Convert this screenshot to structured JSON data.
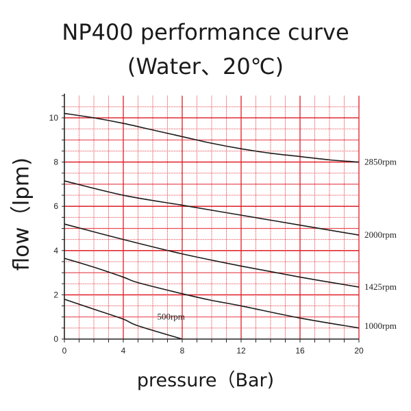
{
  "chart_data": {
    "type": "line",
    "title": "NP400 performance curve",
    "subtitle": "(Water、20℃)",
    "xlabel": "pressure（Bar)",
    "ylabel": "flow（lpm)",
    "xlim": [
      0,
      20
    ],
    "ylim": [
      0,
      11
    ],
    "xticks": [
      0,
      4,
      8,
      12,
      16,
      20
    ],
    "yticks": [
      0,
      2,
      4,
      6,
      8,
      10
    ],
    "grid": true,
    "grid_color": "#e0202a",
    "line_color": "#1a1a1a",
    "series": [
      {
        "name": "2850rpm",
        "x": [
          0,
          2,
          4,
          6,
          8,
          10,
          12,
          14,
          16,
          18,
          20
        ],
        "y": [
          10.2,
          10.0,
          9.75,
          9.45,
          9.15,
          8.85,
          8.6,
          8.4,
          8.25,
          8.1,
          8.0
        ]
      },
      {
        "name": "2000rpm",
        "x": [
          0,
          4,
          8,
          12,
          16,
          20
        ],
        "y": [
          7.15,
          6.5,
          6.05,
          5.6,
          5.15,
          4.7
        ]
      },
      {
        "name": "1425rpm",
        "x": [
          0,
          4,
          8,
          12,
          16,
          20
        ],
        "y": [
          5.2,
          4.5,
          3.85,
          3.3,
          2.8,
          2.35
        ]
      },
      {
        "name": "1000rpm",
        "x": [
          0,
          2,
          4,
          5,
          8,
          10,
          12,
          16,
          20
        ],
        "y": [
          3.65,
          3.25,
          2.8,
          2.55,
          2.05,
          1.75,
          1.5,
          0.95,
          0.5
        ]
      },
      {
        "name": "500rpm",
        "x": [
          0,
          2,
          4,
          5,
          8
        ],
        "y": [
          1.8,
          1.35,
          0.9,
          0.6,
          0.0
        ]
      }
    ]
  }
}
